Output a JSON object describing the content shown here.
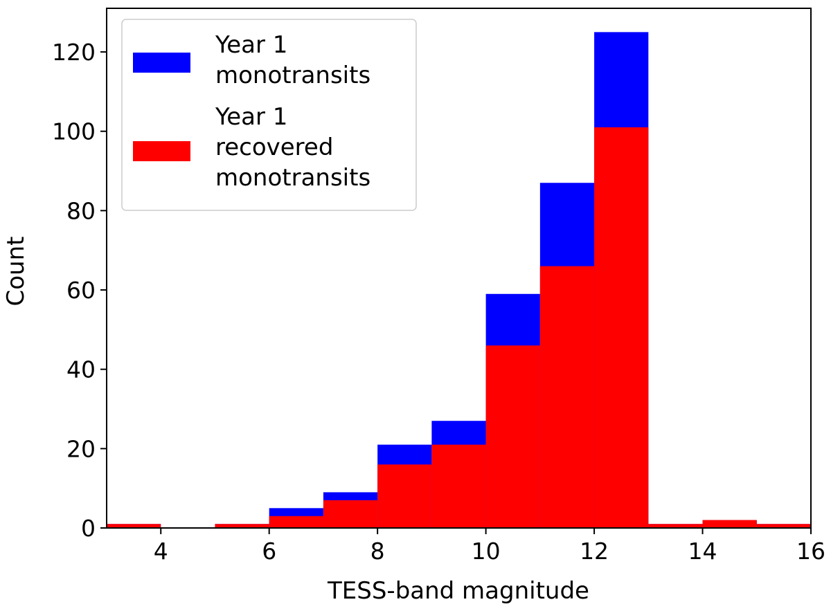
{
  "chart_data": {
    "type": "bar",
    "subtype": "overlaid-histogram",
    "title": "",
    "xlabel": "TESS-band magnitude",
    "ylabel": "Count",
    "xlim": [
      3,
      16
    ],
    "ylim": [
      0,
      131
    ],
    "xticks": [
      4,
      6,
      8,
      10,
      12,
      14,
      16
    ],
    "yticks": [
      0,
      20,
      40,
      60,
      80,
      100,
      120
    ],
    "bin_edges": [
      3,
      4,
      5,
      6,
      7,
      8,
      9,
      10,
      11,
      12,
      13,
      14,
      15,
      16
    ],
    "series": [
      {
        "name": "Year 1 monotransits",
        "legend_lines": [
          "Year 1",
          "monotransits"
        ],
        "color": "#0000ff",
        "values": [
          1,
          0,
          1,
          5,
          9,
          21,
          27,
          59,
          87,
          125,
          1,
          2,
          1
        ]
      },
      {
        "name": "Year 1 recovered monotransits",
        "legend_lines": [
          "Year 1",
          "recovered",
          "monotransits"
        ],
        "color": "#ff0000",
        "values": [
          1,
          0,
          1,
          3,
          7,
          16,
          21,
          46,
          66,
          101,
          1,
          2,
          1
        ]
      }
    ],
    "legend_position": "upper-left",
    "grid": false
  }
}
